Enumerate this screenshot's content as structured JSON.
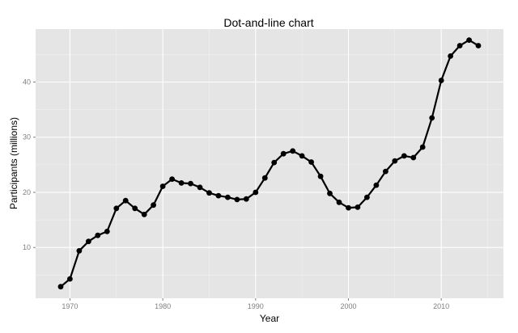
{
  "chart_data": {
    "type": "line",
    "title": "Dot-and-line chart",
    "xlabel": "Year",
    "ylabel": "Participants (millions)",
    "xlim": [
      1966.3,
      2016.7
    ],
    "ylim": [
      0.8,
      49.6
    ],
    "x_ticks": [
      1970,
      1980,
      1990,
      2000,
      2010
    ],
    "y_ticks": [
      10,
      20,
      30,
      40
    ],
    "x_tick_labels": [
      "1970",
      "1980",
      "1990",
      "2000",
      "2010"
    ],
    "y_tick_labels": [
      "10",
      "20",
      "30",
      "40"
    ],
    "grid": true,
    "series": [
      {
        "x": [
          1969,
          1970,
          1971,
          1972,
          1973,
          1974,
          1975,
          1976,
          1977,
          1978,
          1979,
          1980,
          1981,
          1982,
          1983,
          1984,
          1985,
          1986,
          1987,
          1988,
          1989,
          1990,
          1991,
          1992,
          1993,
          1994,
          1995,
          1996,
          1997,
          1998,
          1999,
          2000,
          2001,
          2002,
          2003,
          2004,
          2005,
          2006,
          2007,
          2008,
          2009,
          2010,
          2011,
          2012,
          2013,
          2014
        ],
        "values": [
          2.9,
          4.3,
          9.4,
          11.1,
          12.2,
          12.9,
          17.1,
          18.5,
          17.1,
          16.0,
          17.7,
          21.1,
          22.4,
          21.7,
          21.6,
          20.9,
          19.9,
          19.4,
          19.1,
          18.7,
          18.8,
          20.0,
          22.6,
          25.4,
          27.0,
          27.5,
          26.6,
          25.5,
          22.9,
          19.8,
          18.2,
          17.2,
          17.3,
          19.1,
          21.3,
          23.8,
          25.7,
          26.6,
          26.3,
          28.2,
          33.5,
          40.3,
          44.7,
          46.6,
          47.6,
          46.6
        ]
      }
    ]
  }
}
